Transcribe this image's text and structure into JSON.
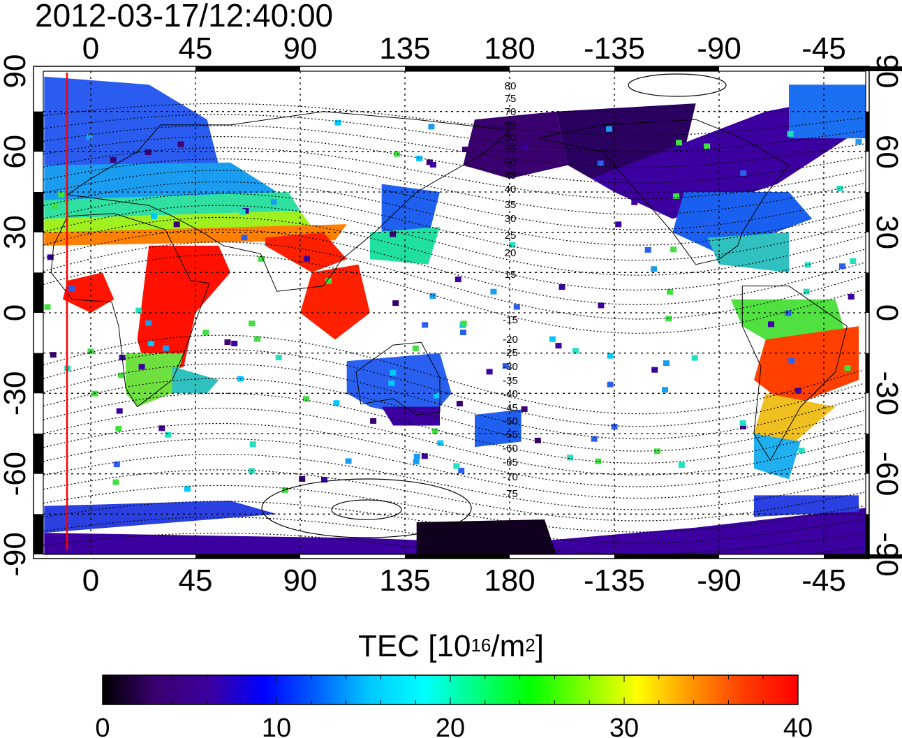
{
  "title": "2012-03-17/12:40:00",
  "map": {
    "type": "global TEC map",
    "projection": "equirectangular",
    "lon_ticks": [
      "0",
      "45",
      "90",
      "135",
      "180",
      "-135",
      "-90",
      "-45"
    ],
    "lat_ticks": [
      "90",
      "60",
      "30",
      "0",
      "-30",
      "-60",
      "-90"
    ],
    "magnetic_latitude_labels": [
      "80",
      "75",
      "70",
      "65",
      "60",
      "55",
      "50",
      "45",
      "40",
      "35",
      "30",
      "25",
      "20",
      "15",
      "-15",
      "-20",
      "-25",
      "-30",
      "-35",
      "-40",
      "-45",
      "-50",
      "-55",
      "-60",
      "-65",
      "-70",
      "-75"
    ],
    "grid": "dotted",
    "marker_line": {
      "color": "#ff0000",
      "lon": -5
    }
  },
  "colorbar": {
    "label_prefix": "TEC  [10",
    "label_exp": "16",
    "label_mid": "/m",
    "label_exp2": "2",
    "label_suffix": "]",
    "min": 0,
    "max": 40,
    "tick_labels": [
      "0",
      "10",
      "20",
      "30",
      "40"
    ],
    "colors": [
      "#000000",
      "#3a0070",
      "#3c00a0",
      "#0000ff",
      "#0060ff",
      "#00c8ff",
      "#00ffff",
      "#00ff80",
      "#00ff00",
      "#80ff00",
      "#ffff00",
      "#ff9600",
      "#ff3c00",
      "#ff0000"
    ]
  }
}
